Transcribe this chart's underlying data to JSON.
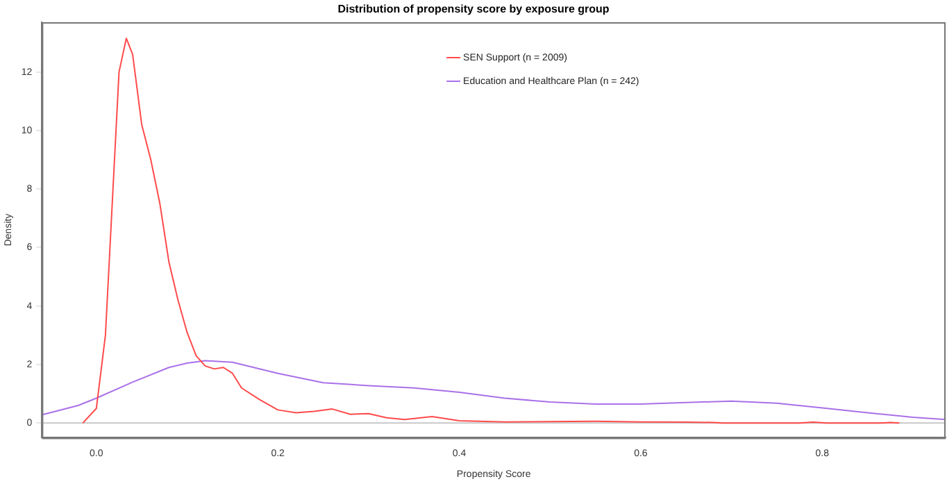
{
  "chart_data": {
    "type": "line",
    "title": "Distribution of propensity score by exposure group",
    "xlabel": "Propensity Score",
    "ylabel": "Density",
    "xlim": [
      -0.06,
      0.936
    ],
    "ylim": [
      -0.5,
      13.7
    ],
    "xticks": [
      {
        "value": 0,
        "label": "0.0"
      },
      {
        "value": 0.2,
        "label": "0.2"
      },
      {
        "value": 0.4,
        "label": "0.4"
      },
      {
        "value": 0.6,
        "label": "0.6"
      },
      {
        "value": 0.8,
        "label": "0.8"
      }
    ],
    "yticks": [
      0,
      2,
      4,
      6,
      8,
      10,
      12
    ],
    "grid": false,
    "legend": "top right",
    "marker": "none",
    "line_style": "solid",
    "ref_lines": [
      {
        "axis": "y",
        "value": 0,
        "color": "#c8c8c8"
      }
    ],
    "series": [
      {
        "name": "SEN Support (n = 2009)",
        "color": "#ff4a4a",
        "x": [
          -0.015,
          0,
          0.01,
          0.02,
          0.025,
          0.033,
          0.04,
          0.05,
          0.06,
          0.07,
          0.08,
          0.09,
          0.1,
          0.11,
          0.12,
          0.13,
          0.14,
          0.15,
          0.16,
          0.18,
          0.2,
          0.22,
          0.24,
          0.26,
          0.28,
          0.3,
          0.32,
          0.34,
          0.37,
          0.4,
          0.45,
          0.5,
          0.55,
          0.6,
          0.65,
          0.68,
          0.69,
          0.775,
          0.79,
          0.805,
          0.865,
          0.875,
          0.885
        ],
        "values": [
          0,
          0.5,
          3,
          9,
          12,
          13.15,
          12.6,
          10.2,
          9,
          7.5,
          5.5,
          4.2,
          3.1,
          2.3,
          1.95,
          1.85,
          1.9,
          1.7,
          1.2,
          0.8,
          0.45,
          0.35,
          0.4,
          0.48,
          0.3,
          0.32,
          0.18,
          0.12,
          0.22,
          0.08,
          0.04,
          0.05,
          0.06,
          0.04,
          0.03,
          0.02,
          0,
          0,
          0.03,
          0,
          0,
          0.02,
          0
        ]
      },
      {
        "name": "Education and Healthcare Plan (n = 242)",
        "color": "#a970e8",
        "x": [
          -0.06,
          -0.02,
          0,
          0.04,
          0.08,
          0.1,
          0.12,
          0.15,
          0.2,
          0.25,
          0.3,
          0.35,
          0.4,
          0.45,
          0.5,
          0.55,
          0.6,
          0.65,
          0.7,
          0.75,
          0.8,
          0.85,
          0.9,
          0.936
        ],
        "values": [
          0.28,
          0.6,
          0.85,
          1.4,
          1.9,
          2.05,
          2.13,
          2.08,
          1.7,
          1.38,
          1.28,
          1.2,
          1.05,
          0.85,
          0.72,
          0.65,
          0.65,
          0.7,
          0.75,
          0.68,
          0.52,
          0.35,
          0.2,
          0.12
        ]
      }
    ]
  }
}
